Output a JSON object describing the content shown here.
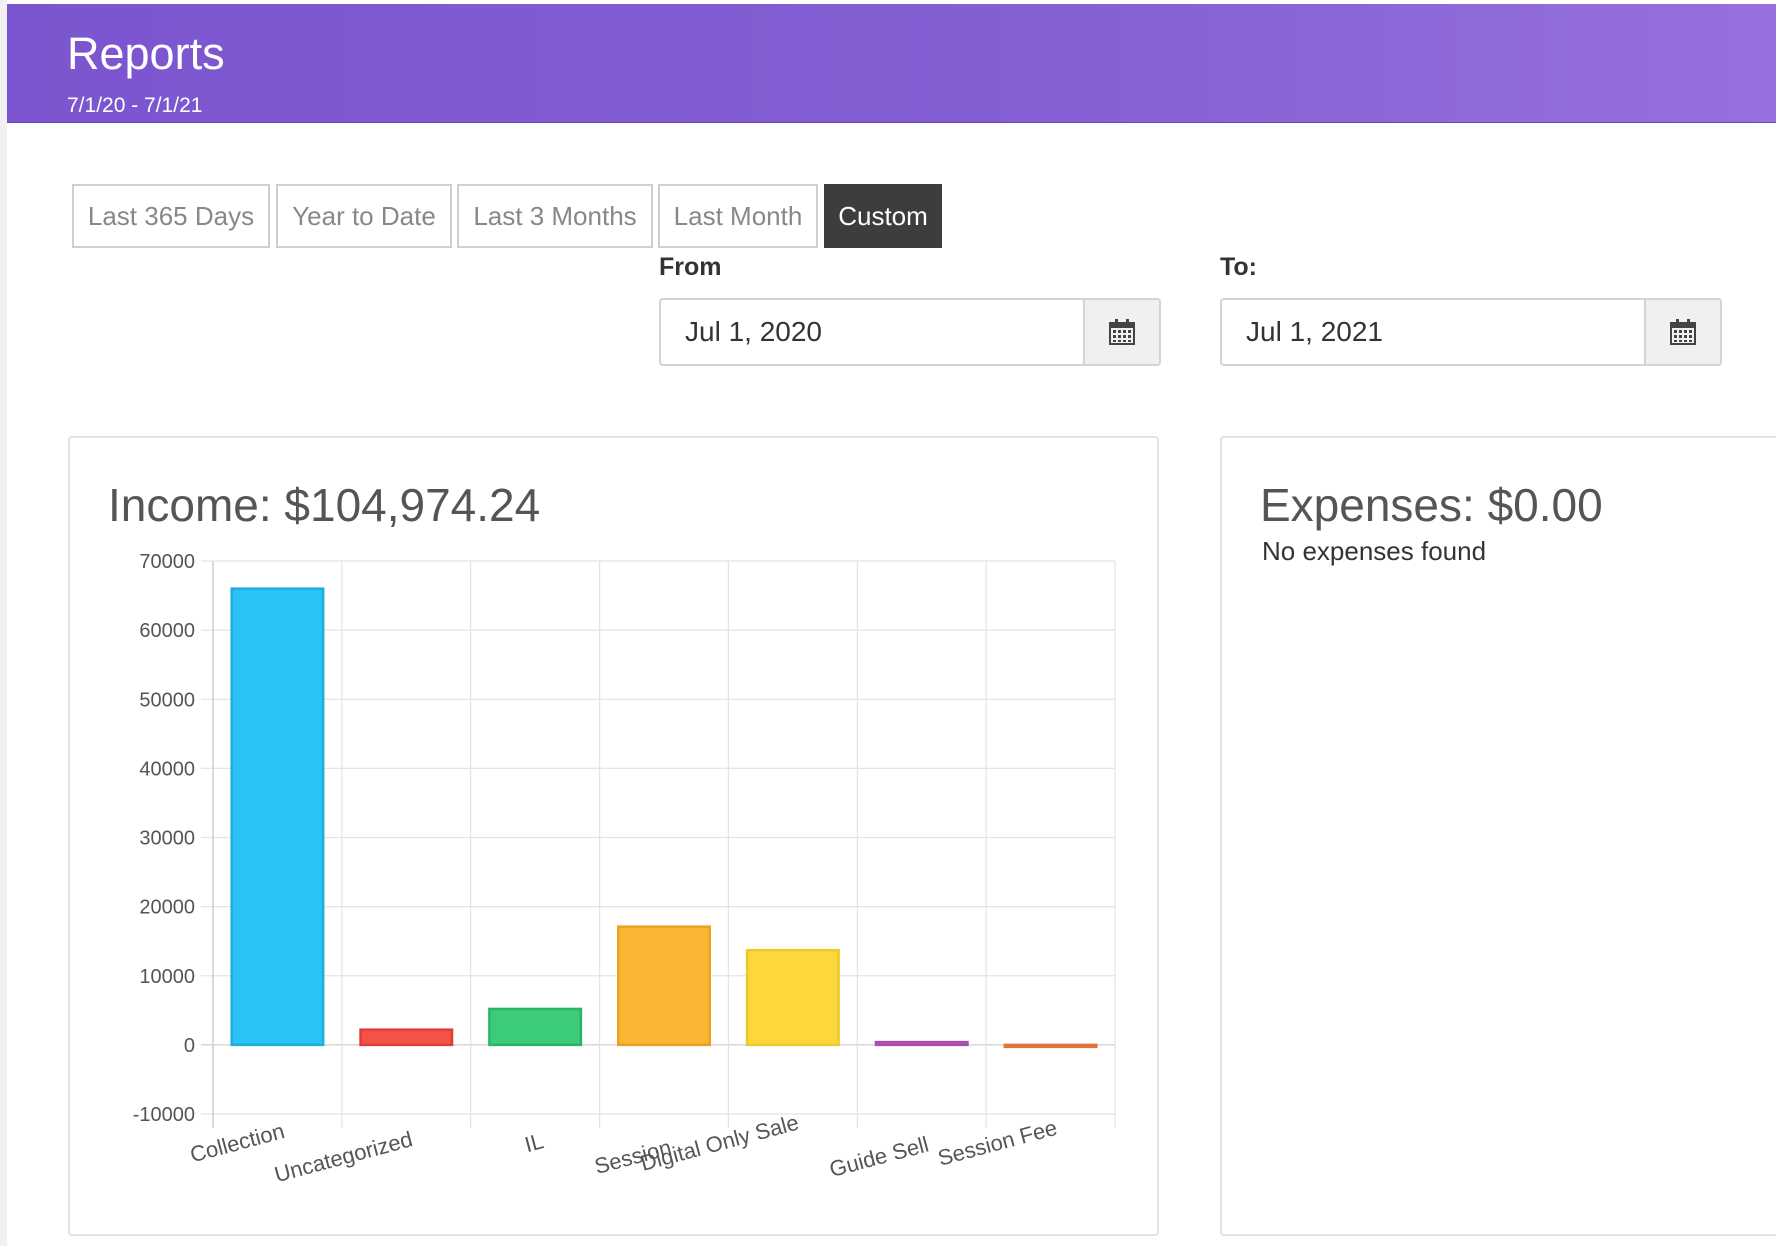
{
  "header": {
    "title": "Reports",
    "date_range": "7/1/20 - 7/1/21"
  },
  "range_buttons": [
    {
      "label": "Last 365 Days",
      "active": false
    },
    {
      "label": "Year to Date",
      "active": false
    },
    {
      "label": "Last 3 Months",
      "active": false
    },
    {
      "label": "Last Month",
      "active": false
    },
    {
      "label": "Custom",
      "active": true
    }
  ],
  "date_from": {
    "label": "From",
    "value": "Jul 1, 2020",
    "icon": "calendar-icon"
  },
  "date_to": {
    "label": "To:",
    "value": "Jul 1, 2021",
    "icon": "calendar-icon"
  },
  "income": {
    "title": "Income: $104,974.24"
  },
  "expenses": {
    "title": "Expenses: $0.00",
    "message": "No expenses found"
  },
  "chart_data": {
    "type": "bar",
    "categories": [
      "Collection",
      "Uncategorized",
      "IL",
      "Session",
      "Digital Only Sale",
      "Guide Sell",
      "Session Fee"
    ],
    "values": [
      66000,
      2200,
      5200,
      17100,
      13700,
      400,
      -200
    ],
    "colors": [
      "#29c4f5",
      "#f2524a",
      "#3ccb78",
      "#fbb534",
      "#fdd83c",
      "#c364c5",
      "#f28c53"
    ],
    "border_colors": [
      "#1eaedb",
      "#e03c35",
      "#2cb466",
      "#e9a220",
      "#f0c72a",
      "#a94dab",
      "#e0733a"
    ],
    "ylim": [
      -10000,
      70000
    ],
    "yticks": [
      70000,
      60000,
      50000,
      40000,
      30000,
      20000,
      10000,
      0,
      -10000
    ],
    "grid": true,
    "title": "",
    "xlabel": "",
    "ylabel": ""
  }
}
